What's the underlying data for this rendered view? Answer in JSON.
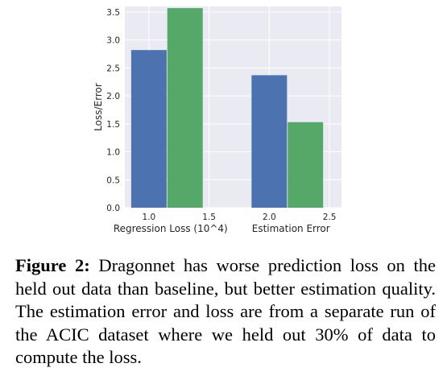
{
  "chart_data": {
    "type": "bar",
    "ylabel": "Loss/Error",
    "ylim": [
      0,
      3.6
    ],
    "yticks": [
      "0.0",
      "0.5",
      "1.0",
      "1.5",
      "2.0",
      "2.5",
      "3.0",
      "3.5"
    ],
    "xlim": [
      0.8,
      2.6
    ],
    "xticks": [
      "1.0",
      "1.5",
      "2.0",
      "2.5"
    ],
    "group_labels": [
      "Regression Loss (10^4)",
      "Estimation Error"
    ],
    "grid": true,
    "background": "#eaeaf2",
    "series": [
      {
        "color": "#4c72b0",
        "bars": [
          {
            "x": 1.0,
            "value": 2.82
          },
          {
            "x": 2.0,
            "value": 2.37
          }
        ]
      },
      {
        "color": "#55a868",
        "bars": [
          {
            "x": 1.3,
            "value": 3.57
          },
          {
            "x": 2.3,
            "value": 1.53
          }
        ]
      }
    ]
  },
  "caption": {
    "label": "Figure 2:",
    "text": " Dragonnet has worse prediction loss on the held out data than baseline, but better estimation quality.  The estimation error and loss are from a separate run of the ACIC dataset where we held out 30% of data to compute the loss."
  }
}
